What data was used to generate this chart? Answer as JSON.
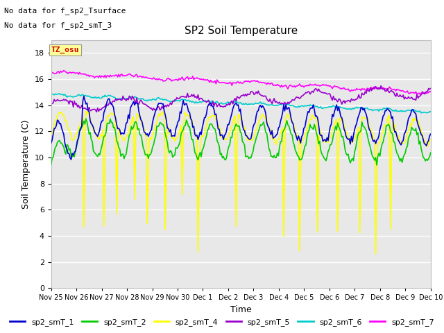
{
  "title": "SP2 Soil Temperature",
  "xlabel": "Time",
  "ylabel": "Soil Temperature (C)",
  "no_data_text": [
    "No data for f_sp2_Tsurface",
    "No data for f_sp2_smT_3"
  ],
  "tz_label": "TZ_osu",
  "ylim": [
    0,
    19
  ],
  "yticks": [
    0,
    2,
    4,
    6,
    8,
    10,
    12,
    14,
    16,
    18
  ],
  "x_tick_labels": [
    "Nov 25",
    "Nov 26",
    "Nov 27",
    "Nov 28",
    "Nov 29",
    "Nov 30",
    "Dec 1",
    "Dec 2",
    "Dec 3",
    "Dec 4",
    "Dec 5",
    "Dec 6",
    "Dec 7",
    "Dec 8",
    "Dec 9",
    "Dec 10"
  ],
  "colors": {
    "sp2_smT_1": "#0000cc",
    "sp2_smT_2": "#00cc00",
    "sp2_smT_4": "#ffff00",
    "sp2_smT_5": "#9900cc",
    "sp2_smT_6": "#00cccc",
    "sp2_smT_7": "#ff00ff"
  },
  "fig_bg_color": "#ffffff",
  "plot_bg_color": "#e8e8e8",
  "grid_color": "#ffffff",
  "n_days": 15,
  "seed": 42
}
